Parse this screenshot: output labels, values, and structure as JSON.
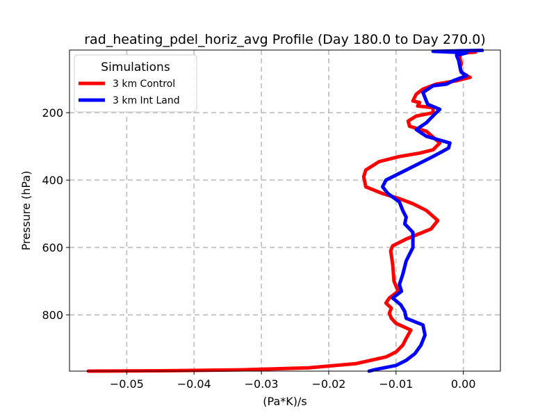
{
  "chart_data": {
    "type": "line",
    "title": "rad_heating_pdel_horiz_avg Profile (Day 180.0 to Day 270.0)",
    "xlabel": "(Pa*K)/s",
    "ylabel": "Pressure (hPa)",
    "xlim": [
      -0.0585,
      0.0055
    ],
    "ylim": [
      967,
      14
    ],
    "y_inverted": true,
    "grid": true,
    "xticks": [
      -0.05,
      -0.04,
      -0.03,
      -0.02,
      -0.01,
      0.0
    ],
    "xtick_labels": [
      "−0.05",
      "−0.04",
      "−0.03",
      "−0.02",
      "−0.01",
      "0.00"
    ],
    "yticks": [
      200,
      400,
      600,
      800
    ],
    "ytick_labels": [
      "200",
      "400",
      "600",
      "800"
    ],
    "legend": {
      "title": "Simulations",
      "position": "upper-left"
    },
    "series": [
      {
        "name": "3 km Control",
        "color": "#ff0000",
        "points": [
          [
            0.0028,
            15
          ],
          [
            -0.0025,
            18
          ],
          [
            0.0018,
            20
          ],
          [
            -0.001,
            25
          ],
          [
            -0.0005,
            30
          ],
          [
            -0.0005,
            40
          ],
          [
            -0.0003,
            55
          ],
          [
            -0.0005,
            65
          ],
          [
            -0.0004,
            75
          ],
          [
            0.0,
            85
          ],
          [
            0.001,
            95
          ],
          [
            -0.001,
            105
          ],
          [
            -0.004,
            115
          ],
          [
            -0.006,
            130
          ],
          [
            -0.007,
            145
          ],
          [
            -0.0075,
            165
          ],
          [
            -0.0065,
            170
          ],
          [
            -0.0068,
            180
          ],
          [
            -0.0045,
            185
          ],
          [
            -0.0045,
            200
          ],
          [
            -0.007,
            210
          ],
          [
            -0.0082,
            225
          ],
          [
            -0.008,
            240
          ],
          [
            -0.0055,
            255
          ],
          [
            -0.0035,
            290
          ],
          [
            -0.0045,
            310
          ],
          [
            -0.0065,
            320
          ],
          [
            -0.0095,
            330
          ],
          [
            -0.0125,
            345
          ],
          [
            -0.0145,
            370
          ],
          [
            -0.0148,
            390
          ],
          [
            -0.0145,
            420
          ],
          [
            -0.012,
            440
          ],
          [
            -0.0095,
            455
          ],
          [
            -0.0075,
            470
          ],
          [
            -0.0055,
            490
          ],
          [
            -0.0038,
            520
          ],
          [
            -0.0048,
            545
          ],
          [
            -0.0085,
            575
          ],
          [
            -0.0105,
            595
          ],
          [
            -0.0108,
            610
          ],
          [
            -0.0105,
            650
          ],
          [
            -0.0103,
            700
          ],
          [
            -0.0097,
            730
          ],
          [
            -0.011,
            750
          ],
          [
            -0.0115,
            765
          ],
          [
            -0.0107,
            780
          ],
          [
            -0.011,
            795
          ],
          [
            -0.0107,
            810
          ],
          [
            -0.01,
            825
          ],
          [
            -0.0078,
            845
          ],
          [
            -0.0085,
            870
          ],
          [
            -0.009,
            890
          ],
          [
            -0.01,
            910
          ],
          [
            -0.0115,
            925
          ],
          [
            -0.016,
            945
          ],
          [
            -0.023,
            957
          ],
          [
            -0.033,
            963
          ],
          [
            -0.045,
            966
          ],
          [
            -0.0557,
            967
          ]
        ]
      },
      {
        "name": "3 km Int Land",
        "color": "#0000ff",
        "points": [
          [
            0.0028,
            15
          ],
          [
            -0.0045,
            18
          ],
          [
            0.0005,
            22
          ],
          [
            -0.001,
            30
          ],
          [
            -0.0007,
            45
          ],
          [
            -0.0005,
            65
          ],
          [
            -0.0003,
            80
          ],
          [
            0.0005,
            90
          ],
          [
            -0.0015,
            105
          ],
          [
            -0.0025,
            115
          ],
          [
            -0.0045,
            120
          ],
          [
            -0.006,
            140
          ],
          [
            -0.0057,
            155
          ],
          [
            -0.0053,
            175
          ],
          [
            -0.0035,
            190
          ],
          [
            -0.0043,
            205
          ],
          [
            -0.0055,
            230
          ],
          [
            -0.007,
            250
          ],
          [
            -0.0055,
            270
          ],
          [
            -0.002,
            290
          ],
          [
            -0.0022,
            305
          ],
          [
            -0.0045,
            330
          ],
          [
            -0.0085,
            370
          ],
          [
            -0.0115,
            400
          ],
          [
            -0.012,
            420
          ],
          [
            -0.0112,
            440
          ],
          [
            -0.0095,
            465
          ],
          [
            -0.009,
            490
          ],
          [
            -0.0085,
            510
          ],
          [
            -0.0087,
            530
          ],
          [
            -0.0075,
            555
          ],
          [
            -0.0075,
            600
          ],
          [
            -0.0085,
            640
          ],
          [
            -0.009,
            680
          ],
          [
            -0.0095,
            710
          ],
          [
            -0.0092,
            730
          ],
          [
            -0.0105,
            750
          ],
          [
            -0.0093,
            770
          ],
          [
            -0.0087,
            790
          ],
          [
            -0.0085,
            810
          ],
          [
            -0.006,
            830
          ],
          [
            -0.0057,
            860
          ],
          [
            -0.0063,
            890
          ],
          [
            -0.0072,
            915
          ],
          [
            -0.0085,
            935
          ],
          [
            -0.01,
            950
          ],
          [
            -0.013,
            962
          ],
          [
            -0.014,
            967
          ]
        ]
      }
    ]
  }
}
